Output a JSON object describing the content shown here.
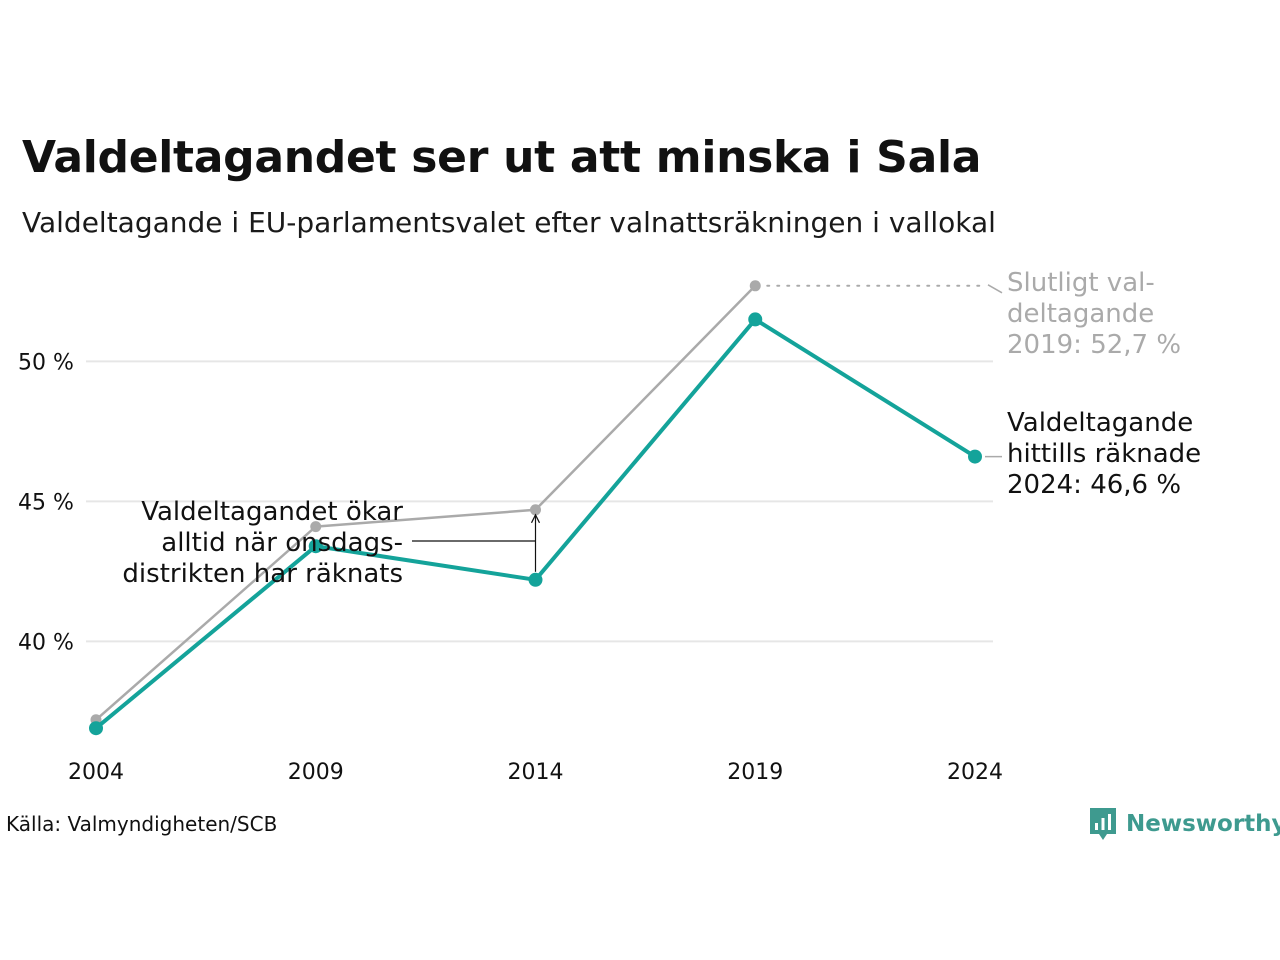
{
  "header": {
    "title": "Valdeltagandet ser ut att minska i Sala",
    "subtitle": "Valdeltagande i EU-parlamentsvalet efter valnattsräkningen i vallokal"
  },
  "footer": {
    "source": "Källa: Valmyndigheten/SCB",
    "brand": "Newsworthy"
  },
  "colors": {
    "counted": "#14a39a",
    "final": "#aaaaaa",
    "grid": "#e6e6e6",
    "text": "#111111",
    "brand": "#3e9a8f"
  },
  "chart_data": {
    "type": "line",
    "x": [
      2004,
      2009,
      2014,
      2019,
      2024
    ],
    "x_tick_labels": [
      "2004",
      "2009",
      "2014",
      "2019",
      "2024"
    ],
    "y_ticks": [
      40,
      45,
      50
    ],
    "y_tick_labels": [
      "40 %",
      "45 %",
      "50 %"
    ],
    "ylim": [
      35.3,
      53.3
    ],
    "grid": true,
    "series": [
      {
        "key": "final",
        "values": [
          37.2,
          44.1,
          44.7,
          52.7,
          null
        ]
      },
      {
        "key": "counted",
        "values": [
          36.9,
          43.4,
          42.2,
          51.5,
          46.6
        ]
      }
    ],
    "annotations": {
      "final_label": [
        "Slutligt val-",
        "deltagande",
        "2019: 52,7 %"
      ],
      "counted_label": [
        "Valdeltagande",
        "hittills räknade",
        "2024: 46,6 %"
      ],
      "note": [
        "Valdeltagandet ökar",
        "alltid när onsdags-",
        "distrikten har räknats"
      ]
    }
  }
}
